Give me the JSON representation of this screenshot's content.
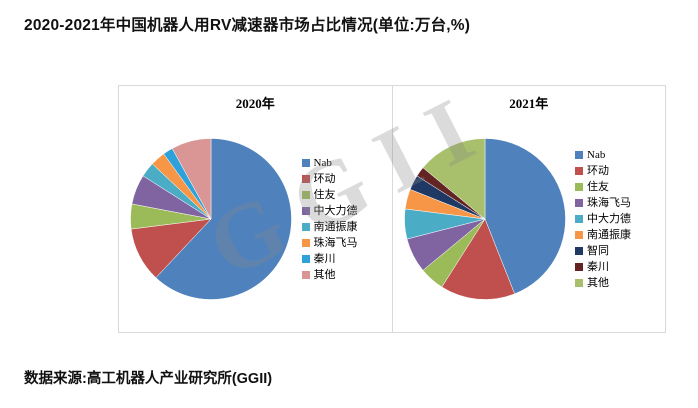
{
  "page": {
    "title": "2020-2021年中国机器人用RV减速器市场占比情况(单位:万台,%)",
    "source": "数据来源:高工机器人产业研究所(GGII)",
    "watermark": "GGII"
  },
  "chart_data": [
    {
      "type": "pie",
      "title": "2020年",
      "categories": [
        "Nab",
        "环动",
        "住友",
        "中大力德",
        "南通振康",
        "珠海飞马",
        "秦川",
        "其他"
      ],
      "values": [
        62,
        11,
        5,
        6,
        3,
        3,
        2,
        8
      ],
      "colors": [
        "#4F81BD",
        "#C0504D",
        "#9BBB59",
        "#8064A2",
        "#4BACC6",
        "#F79646",
        "#2DA1D9",
        "#D99694"
      ],
      "legend_position": "right",
      "start_angle": "top",
      "direction": "clockwise",
      "units": "percent (estimated from slice angles)"
    },
    {
      "type": "pie",
      "title": "2021年",
      "categories": [
        "Nab",
        "环动",
        "住友",
        "珠海飞马",
        "中大力德",
        "南通振康",
        "智同",
        "秦川",
        "其他"
      ],
      "values": [
        44,
        15,
        5,
        7,
        6,
        4,
        3,
        2,
        14
      ],
      "colors": [
        "#4F81BD",
        "#C0504D",
        "#9BBB59",
        "#8064A2",
        "#4BACC6",
        "#F79646",
        "#1F3864",
        "#632523",
        "#A8C06C"
      ],
      "legend_position": "right",
      "start_angle": "top",
      "direction": "clockwise",
      "units": "percent (estimated from slice angles)"
    }
  ]
}
